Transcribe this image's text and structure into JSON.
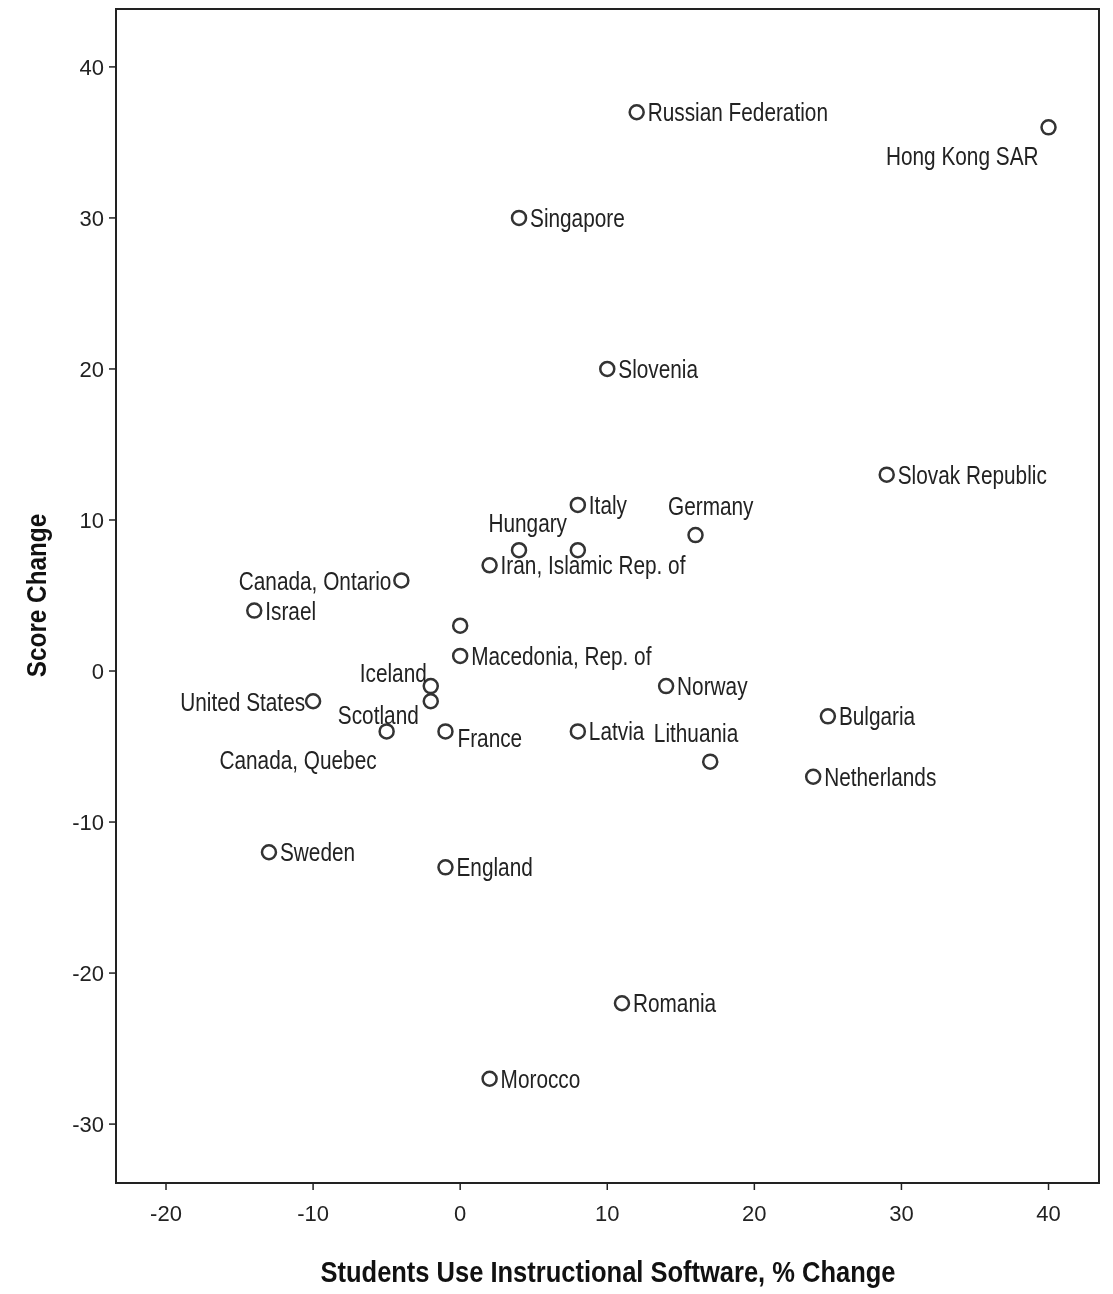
{
  "chart_data": {
    "type": "scatter",
    "xlabel": "Students Use Instructional Software, % Change",
    "ylabel": "Score Change",
    "x": [
      12,
      40,
      4,
      10,
      29,
      8,
      16,
      4,
      8,
      2,
      -4,
      -14,
      0,
      0,
      -2,
      14,
      -10,
      -2,
      25,
      -5,
      -1,
      8,
      17,
      24,
      -13,
      -1,
      11,
      2
    ],
    "series": [
      {
        "color": "#333333",
        "values": [
          37,
          36,
          30,
          20,
          13,
          11,
          9,
          8,
          8,
          7,
          6,
          4,
          3,
          1,
          -1,
          -1,
          -2,
          -2,
          -3,
          -4,
          -4,
          -4,
          -6,
          -7,
          -12,
          -13,
          -22,
          -27
        ]
      }
    ],
    "xlim": [
      -23.4,
      43.5
    ],
    "ylim": [
      -33.9,
      43.9
    ],
    "xticks": [
      -20,
      -10,
      0,
      10,
      20,
      30,
      40
    ],
    "yticks": [
      -30,
      -20,
      -10,
      0,
      10,
      20,
      30,
      40
    ],
    "grid": false,
    "marker": "circle",
    "annotations": [
      {
        "text": "Russian Federation",
        "x": 12,
        "y": 37
      },
      {
        "text": "Hong Kong SAR",
        "x": 40,
        "y": 36
      },
      {
        "text": "Singapore",
        "x": 4,
        "y": 30
      },
      {
        "text": "Slovenia",
        "x": 10,
        "y": 20
      },
      {
        "text": "Slovak Republic",
        "x": 29,
        "y": 13
      },
      {
        "text": "Italy",
        "x": 8,
        "y": 11
      },
      {
        "text": "Germany",
        "x": 16,
        "y": 9
      },
      {
        "text": "Hungary",
        "x": 4,
        "y": 8
      },
      {
        "text": "Iran, Islamic Rep. of",
        "x": 2,
        "y": 7
      },
      {
        "text": "Canada, Ontario",
        "x": -4,
        "y": 6
      },
      {
        "text": "Israel",
        "x": -14,
        "y": 4
      },
      {
        "text": "Macedonia, Rep. of",
        "x": 0,
        "y": 1
      },
      {
        "text": "Iceland",
        "x": -2,
        "y": -1
      },
      {
        "text": "Norway",
        "x": 14,
        "y": -1
      },
      {
        "text": "United States",
        "x": -10,
        "y": -2
      },
      {
        "text": "Scotland",
        "x": -2,
        "y": -2
      },
      {
        "text": "Bulgaria",
        "x": 25,
        "y": -3
      },
      {
        "text": "Canada, Quebec",
        "x": -5,
        "y": -4
      },
      {
        "text": "France",
        "x": -1,
        "y": -4
      },
      {
        "text": "Latvia",
        "x": 8,
        "y": -4
      },
      {
        "text": "Lithuania",
        "x": 17,
        "y": -6
      },
      {
        "text": "Netherlands",
        "x": 24,
        "y": -7
      },
      {
        "text": "Sweden",
        "x": -13,
        "y": -12
      },
      {
        "text": "England",
        "x": -1,
        "y": -13
      },
      {
        "text": "Romania",
        "x": 11,
        "y": -22
      },
      {
        "text": "Morocco",
        "x": 2,
        "y": -27
      }
    ]
  }
}
